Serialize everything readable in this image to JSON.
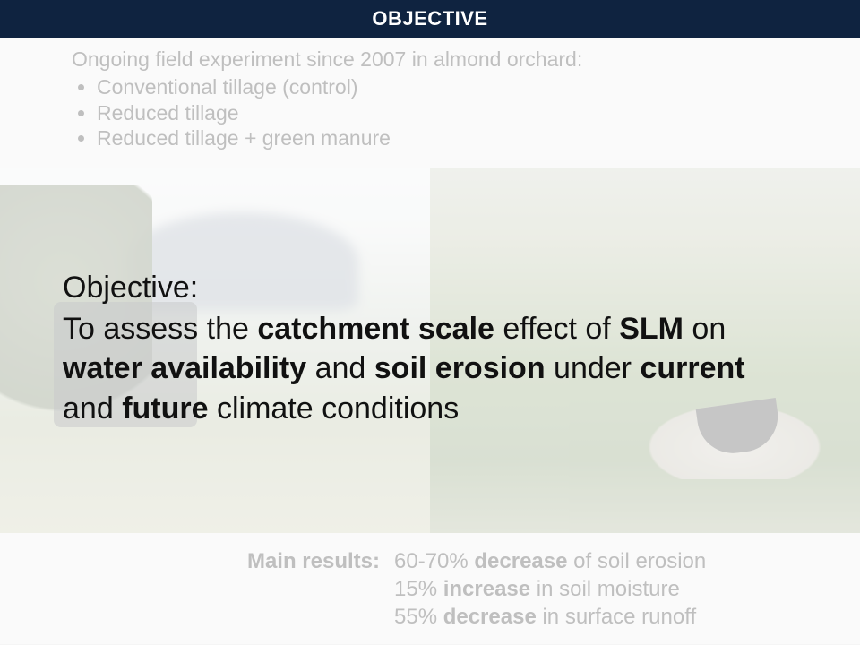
{
  "header": {
    "title": "OBJECTIVE"
  },
  "intro": {
    "lead": "Ongoing field experiment since 2007 in almond orchard:",
    "bullets": [
      "Conventional tillage (control)",
      "Reduced tillage",
      "Reduced tillage + green manure"
    ],
    "text_color": "#bfbfbf",
    "font_size_pt": 17
  },
  "objective": {
    "label": "Objective:",
    "segments": [
      {
        "t": "To assess the ",
        "b": false
      },
      {
        "t": "catchment scale",
        "b": true
      },
      {
        "t": " effect of ",
        "b": false
      },
      {
        "t": "SLM",
        "b": true
      },
      {
        "t": " on ",
        "b": false
      },
      {
        "t": "water availability",
        "b": true
      },
      {
        "t": " and ",
        "b": false
      },
      {
        "t": "soil erosion",
        "b": true
      },
      {
        "t": " under ",
        "b": false
      },
      {
        "t": "current",
        "b": true
      },
      {
        "t": " and ",
        "b": false
      },
      {
        "t": "future",
        "b": true
      },
      {
        "t": " climate conditions",
        "b": false
      }
    ],
    "text_color": "#111111",
    "font_size_pt": 26
  },
  "results": {
    "label": "Main results:",
    "lines": [
      [
        {
          "t": "60-70% ",
          "b": false
        },
        {
          "t": "decrease",
          "b": true
        },
        {
          "t": " of soil erosion",
          "b": false
        }
      ],
      [
        {
          "t": "15% ",
          "b": false
        },
        {
          "t": "increase",
          "b": true
        },
        {
          "t": " in soil moisture",
          "b": false
        }
      ],
      [
        {
          "t": "55% ",
          "b": false
        },
        {
          "t": "decrease",
          "b": true
        },
        {
          "t": " in surface runoff",
          "b": false
        }
      ]
    ],
    "text_color": "#bfbfbf",
    "font_size_pt": 18
  },
  "colors": {
    "header_bg": "#0f2340",
    "header_fg": "#ffffff",
    "page_bg": "#fafafa",
    "faded_text": "#bfbfbf",
    "body_text": "#111111"
  }
}
